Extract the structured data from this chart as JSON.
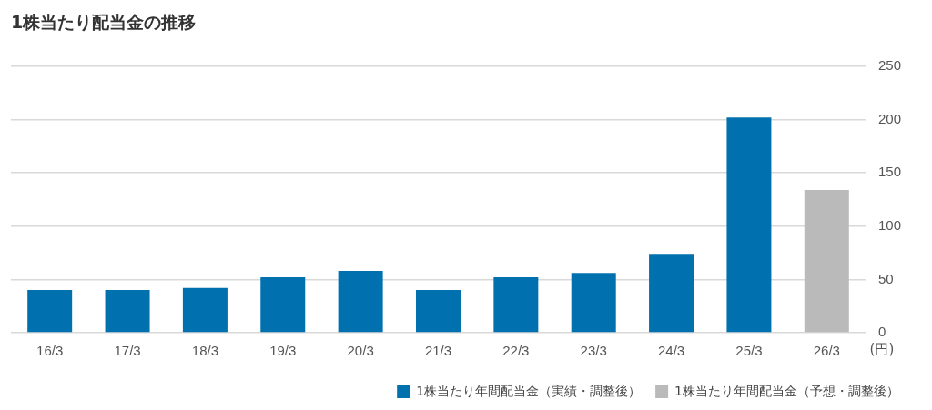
{
  "chart_data": {
    "type": "bar",
    "title": "1株当たり配当金の推移",
    "ylabel": "(円)",
    "categories": [
      "16/3",
      "17/3",
      "18/3",
      "19/3",
      "20/3",
      "21/3",
      "22/3",
      "23/3",
      "24/3",
      "25/3",
      "26/3"
    ],
    "series": [
      {
        "name": "1株当たり年間配当金（実績・調整後）",
        "color": "#0070ae",
        "values": [
          40,
          40,
          42,
          52,
          58,
          40,
          52,
          56,
          74,
          202,
          null
        ]
      },
      {
        "name": "1株当たり年間配当金（予想・調整後）",
        "color": "#bababa",
        "values": [
          null,
          null,
          null,
          null,
          null,
          null,
          null,
          null,
          null,
          null,
          134
        ]
      }
    ],
    "ylim": [
      0,
      250
    ],
    "yticks": [
      0,
      50,
      100,
      150,
      200,
      250
    ],
    "grid": "y",
    "legend": "bottom right"
  }
}
